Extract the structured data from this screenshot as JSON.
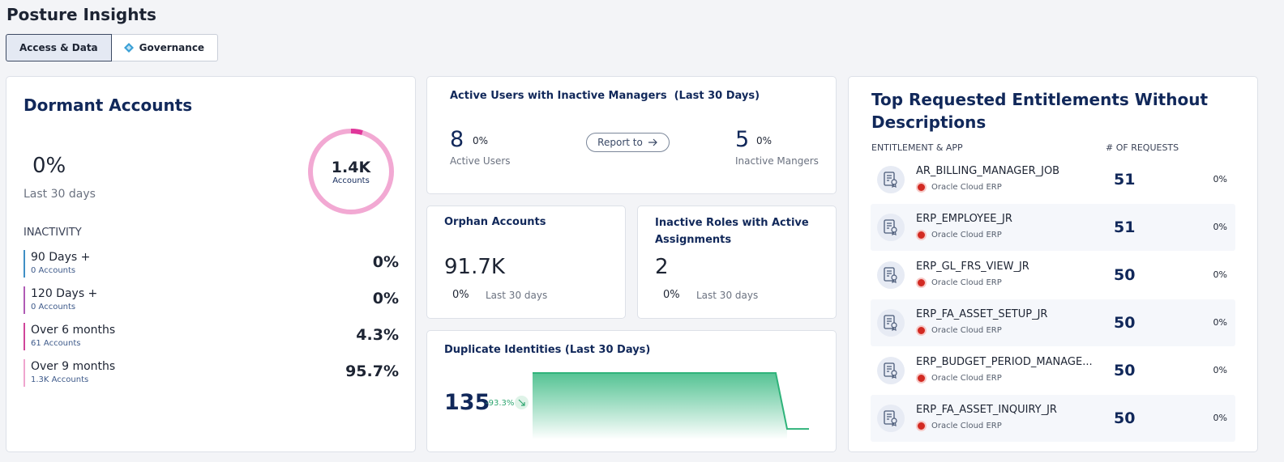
{
  "page_title": "Posture Insights",
  "tabs": [
    {
      "label": "Access & Data",
      "active": true
    },
    {
      "label": "Governance",
      "active": false,
      "icon": "governance-diamond-icon"
    }
  ],
  "dormant": {
    "title": "Dormant Accounts",
    "change": "0%",
    "period": "Last 30 days",
    "ring_value": "1.4K",
    "ring_label": "Accounts",
    "ring_accent_fraction": 0.045,
    "inactivity_heading": "INACTIVITY",
    "rows": [
      {
        "label": "90 Days +",
        "sub": "0 Accounts",
        "value": "0%",
        "color": "#3f8fc5"
      },
      {
        "label": "120 Days +",
        "sub": "0 Accounts",
        "value": "0%",
        "color": "#b05bb5"
      },
      {
        "label": "Over 6 months",
        "sub": "61 Accounts",
        "value": "4.3%",
        "color": "#d0459a"
      },
      {
        "label": "Over 9 months",
        "sub": "1.3K Accounts",
        "value": "95.7%",
        "color": "#efa5cf"
      }
    ],
    "colors": {
      "ring": "#f2a9d3",
      "ring_accent": "#e0369a"
    }
  },
  "active_users": {
    "title": "Active Users with Inactive Managers  (Last 30 Days)",
    "users_count": "8",
    "users_change": "0%",
    "users_label": "Active Users",
    "report_button": "Report to",
    "managers_count": "5",
    "managers_change": "0%",
    "managers_label": "Inactive Mangers"
  },
  "orphan": {
    "title": "Orphan Accounts",
    "value": "91.7K",
    "change": "0%",
    "period": "Last 30 days"
  },
  "inactive_roles": {
    "title": "Inactive Roles with Active Assignments",
    "value": "2",
    "change": "0%",
    "period": "Last 30 days"
  },
  "duplicate": {
    "title": "Duplicate Identities (Last 30 Days)",
    "value": "135",
    "change": "-93.3%",
    "trend_icon": "trend-down-icon"
  },
  "entitlements": {
    "title": "Top Requested Entitlements Without Descriptions",
    "col_entitlement": "ENTITLEMENT & APP",
    "col_requests": "# OF REQUESTS",
    "rows": [
      {
        "name": "AR_BILLING_MANAGER_JOB",
        "app": "Oracle Cloud ERP",
        "requests": "51",
        "pct": "0%"
      },
      {
        "name": "ERP_EMPLOYEE_JR",
        "app": "Oracle Cloud ERP",
        "requests": "51",
        "pct": "0%"
      },
      {
        "name": "ERP_GL_FRS_VIEW_JR",
        "app": "Oracle Cloud ERP",
        "requests": "50",
        "pct": "0%"
      },
      {
        "name": "ERP_FA_ASSET_SETUP_JR",
        "app": "Oracle Cloud ERP",
        "requests": "50",
        "pct": "0%"
      },
      {
        "name": "ERP_BUDGET_PERIOD_MANAGE...",
        "app": "Oracle Cloud ERP",
        "requests": "50",
        "pct": "0%"
      },
      {
        "name": "ERP_FA_ASSET_INQUIRY_JR",
        "app": "Oracle Cloud ERP",
        "requests": "50",
        "pct": "0%"
      }
    ]
  },
  "chart_data": {
    "type": "area",
    "series": [
      {
        "values": [
          135,
          135,
          135,
          135,
          135,
          135,
          9
        ]
      }
    ],
    "colors": {
      "line": "#2fb37a",
      "fill_top": "#4cc08e"
    }
  }
}
